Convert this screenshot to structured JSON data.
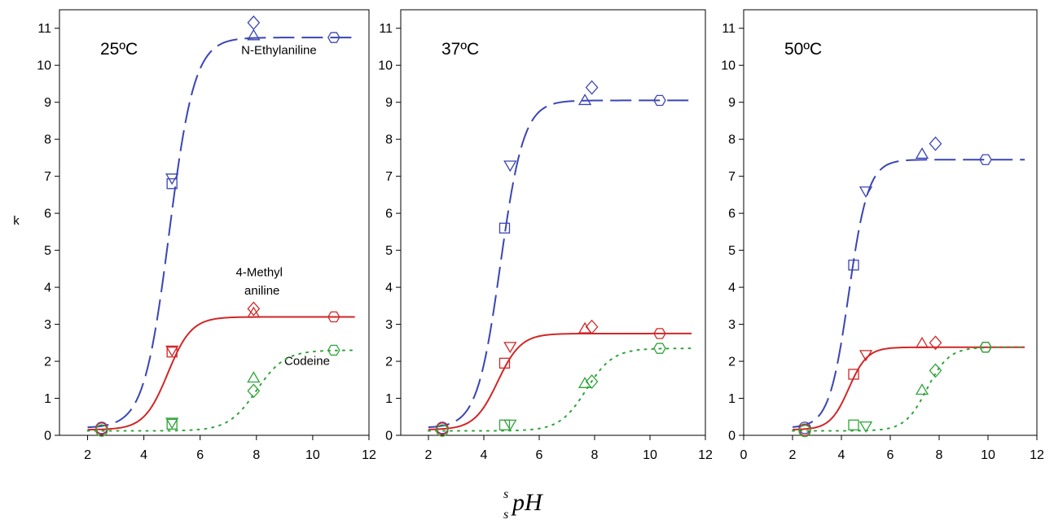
{
  "figure": {
    "ylabel": "k",
    "xlabel": {
      "superscript": "s",
      "subscript": "s",
      "main": "pH"
    }
  },
  "colors": {
    "n_ethylaniline": "#3a45b4",
    "methylaniline": "#d12727",
    "codeine": "#2ea43a"
  },
  "chart_data": [
    {
      "type": "scatter",
      "title": "25ºC",
      "xlim": [
        1,
        12
      ],
      "ylim": [
        0,
        11.5
      ],
      "xticks": [
        "2",
        "4",
        "6",
        "8",
        "10",
        "12"
      ],
      "yticks": [
        "0",
        "1",
        "2",
        "3",
        "4",
        "5",
        "6",
        "7",
        "8",
        "9",
        "10",
        "11"
      ],
      "annotations": [
        {
          "text": "N-Ethylaniline",
          "x": 8.8,
          "y": 10.3
        },
        {
          "text": "4-Methyl",
          "x": 8.1,
          "y": 4.3
        },
        {
          "text": "aniline",
          "x": 8.2,
          "y": 3.8
        },
        {
          "text": "Codeine",
          "x": 9.8,
          "y": 1.9
        }
      ],
      "series": [
        {
          "name": "N-Ethylaniline",
          "key": "n_ethylaniline",
          "line": "dashed",
          "fit": {
            "kmin": 0.2,
            "kmax": 10.75,
            "pka": 4.9,
            "w": 0.45
          },
          "points": [
            {
              "x": 2.5,
              "y": 0.2,
              "m": "circle"
            },
            {
              "x": 5.0,
              "y": 6.95,
              "m": "tri-down"
            },
            {
              "x": 5.0,
              "y": 6.8,
              "m": "square"
            },
            {
              "x": 7.9,
              "y": 10.8,
              "m": "tri-up"
            },
            {
              "x": 7.9,
              "y": 11.15,
              "m": "diamond"
            },
            {
              "x": 10.75,
              "y": 10.75,
              "m": "hexagon"
            }
          ]
        },
        {
          "name": "4-Methyl aniline",
          "key": "methylaniline",
          "line": "solid",
          "fit": {
            "kmin": 0.15,
            "kmax": 3.2,
            "pka": 4.85,
            "w": 0.42
          },
          "points": [
            {
              "x": 2.5,
              "y": 0.18,
              "m": "circle"
            },
            {
              "x": 5.0,
              "y": 2.3,
              "m": "tri-down"
            },
            {
              "x": 5.0,
              "y": 2.25,
              "m": "square"
            },
            {
              "x": 7.9,
              "y": 3.3,
              "m": "tri-up"
            },
            {
              "x": 7.9,
              "y": 3.42,
              "m": "diamond"
            },
            {
              "x": 10.75,
              "y": 3.2,
              "m": "hexagon"
            }
          ]
        },
        {
          "name": "Codeine",
          "key": "codeine",
          "line": "dotted",
          "fit": {
            "kmin": 0.12,
            "kmax": 2.3,
            "pka": 8.0,
            "w": 0.5
          },
          "points": [
            {
              "x": 2.5,
              "y": 0.13,
              "m": "circle"
            },
            {
              "x": 5.0,
              "y": 0.35,
              "m": "tri-down"
            },
            {
              "x": 5.0,
              "y": 0.3,
              "m": "square"
            },
            {
              "x": 7.9,
              "y": 1.55,
              "m": "tri-up"
            },
            {
              "x": 7.9,
              "y": 1.2,
              "m": "diamond"
            },
            {
              "x": 10.75,
              "y": 2.3,
              "m": "hexagon"
            }
          ]
        }
      ]
    },
    {
      "type": "scatter",
      "title": "37ºC",
      "xlim": [
        1,
        12
      ],
      "ylim": [
        0,
        11.5
      ],
      "xticks": [
        "2",
        "4",
        "6",
        "8",
        "10",
        "12"
      ],
      "yticks": [
        "0",
        "1",
        "2",
        "3",
        "4",
        "5",
        "6",
        "7",
        "8",
        "9",
        "10",
        "11"
      ],
      "annotations": [],
      "series": [
        {
          "name": "N-Ethylaniline",
          "key": "n_ethylaniline",
          "line": "dashed",
          "fit": {
            "kmin": 0.2,
            "kmax": 9.05,
            "pka": 4.6,
            "w": 0.42
          },
          "points": [
            {
              "x": 2.5,
              "y": 0.2,
              "m": "circle"
            },
            {
              "x": 4.95,
              "y": 7.3,
              "m": "tri-down"
            },
            {
              "x": 4.75,
              "y": 5.6,
              "m": "square"
            },
            {
              "x": 7.65,
              "y": 9.05,
              "m": "tri-up"
            },
            {
              "x": 7.9,
              "y": 9.4,
              "m": "diamond"
            },
            {
              "x": 10.35,
              "y": 9.05,
              "m": "hexagon"
            }
          ]
        },
        {
          "name": "4-Methyl aniline",
          "key": "methylaniline",
          "line": "solid",
          "fit": {
            "kmin": 0.15,
            "kmax": 2.75,
            "pka": 4.5,
            "w": 0.42
          },
          "points": [
            {
              "x": 2.5,
              "y": 0.18,
              "m": "circle"
            },
            {
              "x": 4.95,
              "y": 2.4,
              "m": "tri-down"
            },
            {
              "x": 4.75,
              "y": 1.95,
              "m": "square"
            },
            {
              "x": 7.65,
              "y": 2.88,
              "m": "tri-up"
            },
            {
              "x": 7.9,
              "y": 2.93,
              "m": "diamond"
            },
            {
              "x": 10.35,
              "y": 2.75,
              "m": "hexagon"
            }
          ]
        },
        {
          "name": "Codeine",
          "key": "codeine",
          "line": "dotted",
          "fit": {
            "kmin": 0.12,
            "kmax": 2.35,
            "pka": 7.7,
            "w": 0.48
          },
          "points": [
            {
              "x": 2.5,
              "y": 0.13,
              "m": "circle"
            },
            {
              "x": 4.95,
              "y": 0.3,
              "m": "tri-down"
            },
            {
              "x": 4.75,
              "y": 0.28,
              "m": "square"
            },
            {
              "x": 7.65,
              "y": 1.4,
              "m": "tri-up"
            },
            {
              "x": 7.9,
              "y": 1.45,
              "m": "diamond"
            },
            {
              "x": 10.35,
              "y": 2.35,
              "m": "hexagon"
            }
          ]
        }
      ]
    },
    {
      "type": "scatter",
      "title": "50ºC",
      "xlim": [
        0,
        12
      ],
      "ylim": [
        0,
        11.5
      ],
      "xticks": [
        "0",
        "2",
        "4",
        "6",
        "8",
        "10",
        "12"
      ],
      "yticks": [
        "0",
        "1",
        "2",
        "3",
        "4",
        "5",
        "6",
        "7",
        "8",
        "9",
        "10",
        "11"
      ],
      "annotations": [],
      "series": [
        {
          "name": "N-Ethylaniline",
          "key": "n_ethylaniline",
          "line": "dashed",
          "fit": {
            "kmin": 0.2,
            "kmax": 7.45,
            "pka": 4.3,
            "w": 0.4
          },
          "points": [
            {
              "x": 2.5,
              "y": 0.2,
              "m": "circle"
            },
            {
              "x": 5.0,
              "y": 6.6,
              "m": "tri-down"
            },
            {
              "x": 4.5,
              "y": 4.6,
              "m": "square"
            },
            {
              "x": 7.3,
              "y": 7.6,
              "m": "tri-up"
            },
            {
              "x": 7.85,
              "y": 7.88,
              "m": "diamond"
            },
            {
              "x": 9.9,
              "y": 7.45,
              "m": "hexagon"
            }
          ]
        },
        {
          "name": "4-Methyl aniline",
          "key": "methylaniline",
          "line": "solid",
          "fit": {
            "kmin": 0.15,
            "kmax": 2.38,
            "pka": 4.3,
            "w": 0.38
          },
          "points": [
            {
              "x": 2.5,
              "y": 0.15,
              "m": "circle"
            },
            {
              "x": 5.0,
              "y": 2.18,
              "m": "tri-down"
            },
            {
              "x": 4.5,
              "y": 1.65,
              "m": "square"
            },
            {
              "x": 7.3,
              "y": 2.48,
              "m": "tri-up"
            },
            {
              "x": 7.85,
              "y": 2.5,
              "m": "diamond"
            },
            {
              "x": 9.9,
              "y": 2.38,
              "m": "hexagon"
            }
          ]
        },
        {
          "name": "Codeine",
          "key": "codeine",
          "line": "dotted",
          "fit": {
            "kmin": 0.12,
            "kmax": 2.38,
            "pka": 7.5,
            "w": 0.45
          },
          "points": [
            {
              "x": 2.5,
              "y": 0.12,
              "m": "circle"
            },
            {
              "x": 5.0,
              "y": 0.25,
              "m": "tri-down"
            },
            {
              "x": 4.5,
              "y": 0.28,
              "m": "square"
            },
            {
              "x": 7.3,
              "y": 1.22,
              "m": "tri-up"
            },
            {
              "x": 7.85,
              "y": 1.75,
              "m": "diamond"
            },
            {
              "x": 9.9,
              "y": 2.38,
              "m": "hexagon"
            }
          ]
        }
      ]
    }
  ]
}
